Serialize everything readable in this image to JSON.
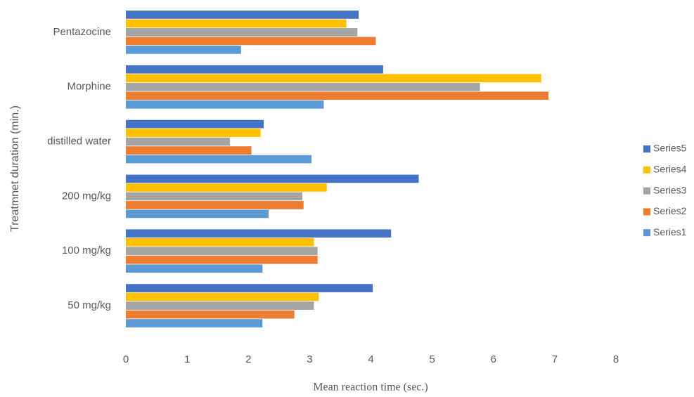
{
  "chart_data": {
    "type": "bar",
    "orientation": "horizontal",
    "title": "",
    "xlabel": "Mean reaction time (sec.)",
    "ylabel": "Treatmnet duration (min.)",
    "xlim": [
      0,
      8
    ],
    "x_ticks": [
      "0",
      "1",
      "2",
      "3",
      "4",
      "5",
      "6",
      "7",
      "8"
    ],
    "grid": false,
    "legend_position": "right",
    "categories": [
      "50 mg/kg",
      "100 mg/kg",
      "200 mg/kg",
      "distilled water",
      "Morphine",
      "Pentazocine"
    ],
    "series": [
      {
        "name": "Series1",
        "color": "#5B9BD5",
        "values": [
          2.23,
          2.23,
          2.33,
          3.03,
          3.23,
          1.88
        ]
      },
      {
        "name": "Series2",
        "color": "#ED7D31",
        "values": [
          2.75,
          3.13,
          2.9,
          2.05,
          6.9,
          4.08
        ]
      },
      {
        "name": "Series3",
        "color": "#A5A5A5",
        "values": [
          3.07,
          3.13,
          2.88,
          1.7,
          5.78,
          3.78
        ]
      },
      {
        "name": "Series4",
        "color": "#FFC000",
        "values": [
          3.15,
          3.07,
          3.28,
          2.2,
          6.78,
          3.6
        ]
      },
      {
        "name": "Series5",
        "color": "#4472C4",
        "values": [
          4.03,
          4.33,
          4.78,
          2.25,
          4.2,
          3.8
        ]
      }
    ]
  }
}
